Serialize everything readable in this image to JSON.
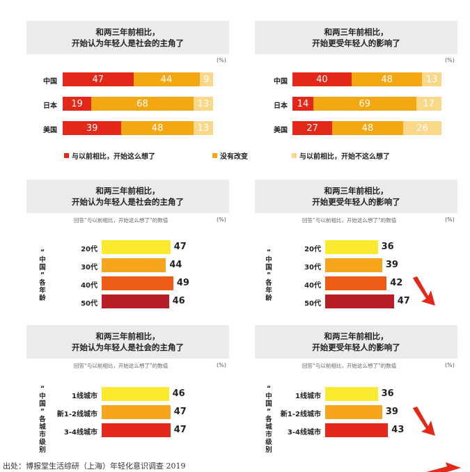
{
  "colors": {
    "red": "#e3281a",
    "orange": "#f3a812",
    "light": "#fad88a",
    "yellow": "#fbe92e",
    "orange2": "#f6a51d",
    "deep_orange": "#ec5c14",
    "dark_red": "#b41e24"
  },
  "unit": "(%)",
  "note": "回答“与以前相比，开始这么想了”的数值",
  "legend": [
    "与以前相比，开始这么想了",
    "没有改变",
    "与以前相比，开始不这么想了"
  ],
  "source": "出处：博报堂生活综研（上海）年轻化意识调查 2019",
  "chart_data": [
    {
      "type": "bar",
      "stacked": true,
      "title": [
        "和两三年前相比，",
        "开始认为年轻人是社会的主角了"
      ],
      "categories": [
        "中国",
        "日本",
        "美国"
      ],
      "series": [
        {
          "name": "与以前相比，开始这么想了",
          "values": [
            47,
            19,
            39
          ]
        },
        {
          "name": "没有改变",
          "values": [
            44,
            68,
            48
          ]
        },
        {
          "name": "与以前相比，开始不这么想了",
          "values": [
            9,
            13,
            13
          ]
        }
      ]
    },
    {
      "type": "bar",
      "stacked": true,
      "title": [
        "和两三年前相比，",
        "开始更受年轻人的影响了"
      ],
      "categories": [
        "中国",
        "日本",
        "美国"
      ],
      "series": [
        {
          "name": "与以前相比，开始这么想了",
          "values": [
            40,
            14,
            27
          ]
        },
        {
          "name": "没有改变",
          "values": [
            48,
            69,
            48
          ]
        },
        {
          "name": "与以前相比，开始不这么想了",
          "values": [
            13,
            17,
            26
          ]
        }
      ]
    },
    {
      "type": "bar",
      "title": [
        "和两三年前相比，",
        "开始认为年轻人是社会的主角了"
      ],
      "group_label": "“中国”各年龄",
      "categories": [
        "20代",
        "30代",
        "40代",
        "50代"
      ],
      "values": [
        47,
        44,
        49,
        46
      ]
    },
    {
      "type": "bar",
      "title": [
        "和两三年前相比，",
        "开始更受年轻人的影响了"
      ],
      "group_label": "“中国”各年龄",
      "categories": [
        "20代",
        "30代",
        "40代",
        "50代"
      ],
      "values": [
        36,
        39,
        42,
        47
      ]
    },
    {
      "type": "bar",
      "title": [
        "和两三年前相比，",
        "开始认为年轻人是社会的主角了"
      ],
      "group_label": "“中国”各城市级别",
      "categories": [
        "1线城市",
        "新1-2线城市",
        "3-4线城市"
      ],
      "values": [
        46,
        47,
        47
      ]
    },
    {
      "type": "bar",
      "title": [
        "和两三年前相比，",
        "开始更受年轻人的影响了"
      ],
      "group_label": "“中国”各城市级别",
      "categories": [
        "1线城市",
        "新1-2线城市",
        "3-4线城市"
      ],
      "values": [
        36,
        39,
        43
      ]
    }
  ]
}
